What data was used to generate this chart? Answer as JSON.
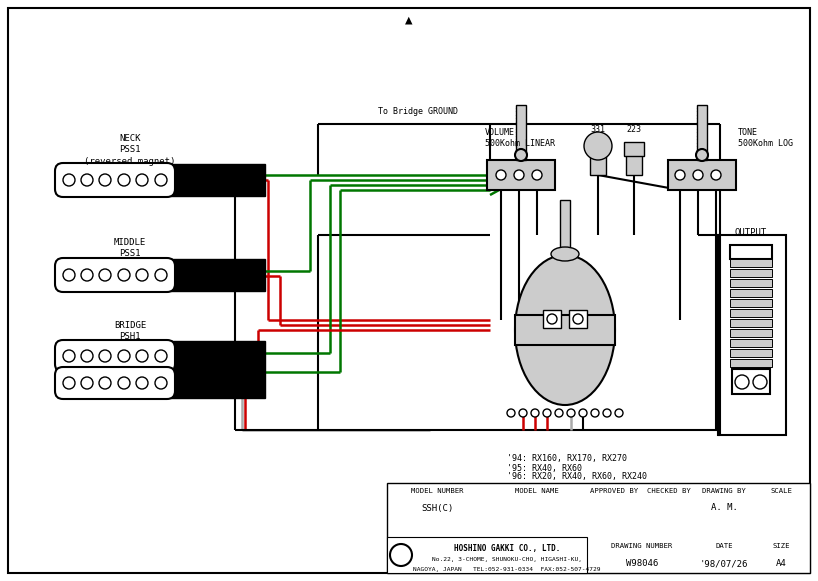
{
  "title_arrow": "▲",
  "bg_color": "#ffffff",
  "fig_width": 8.18,
  "fig_height": 5.81,
  "labels": {
    "neck": "NECK\nPSS1\n(reversed magnet)",
    "middle": "MIDDLE\nPSS1",
    "bridge": "BRIDGE\nPSH1",
    "volume": "VOLUME\n500Kohm LINEAR",
    "tone": "TONE\n500Kohm LOG",
    "output": "OUTPUT",
    "ground": "To Bridge GROUND",
    "num331": "331",
    "num223": "223",
    "models1": "'94: RX160, RX170, RX270",
    "models2": "'95: RX40, RX60",
    "models3": "'96: RX20, RX40, RX60, RX240",
    "model_number": "SSH(C)",
    "drawing_by": "A. M.",
    "drawing_number": "W98046",
    "date": "'98/07/26",
    "size": "A4",
    "col1": "MODEL NUMBER",
    "col2": "MODEL NAME",
    "col3": "APPROVED BY",
    "col4": "CHECKED BY",
    "col5": "DRAWING BY",
    "col6": "SCALE",
    "company": "HOSHINO GAKKI CO., LTD.",
    "address1": "No.22, 3-CHOME, SHUNOKU-CHO, HIGASHI-KU,",
    "address2": "NAGOYA, JAPAN   TEL:052-931-0334  FAX:052-507-4729",
    "col_dn": "DRAWING NUMBER",
    "col_date": "DATE",
    "col_size": "SIZE"
  },
  "colors": {
    "green": "#007700",
    "red": "#cc0000",
    "black": "#000000",
    "white": "#ffffff",
    "gray": "#aaaaaa",
    "light_gray": "#cccccc",
    "dot_gray": "#aaaaaa"
  }
}
